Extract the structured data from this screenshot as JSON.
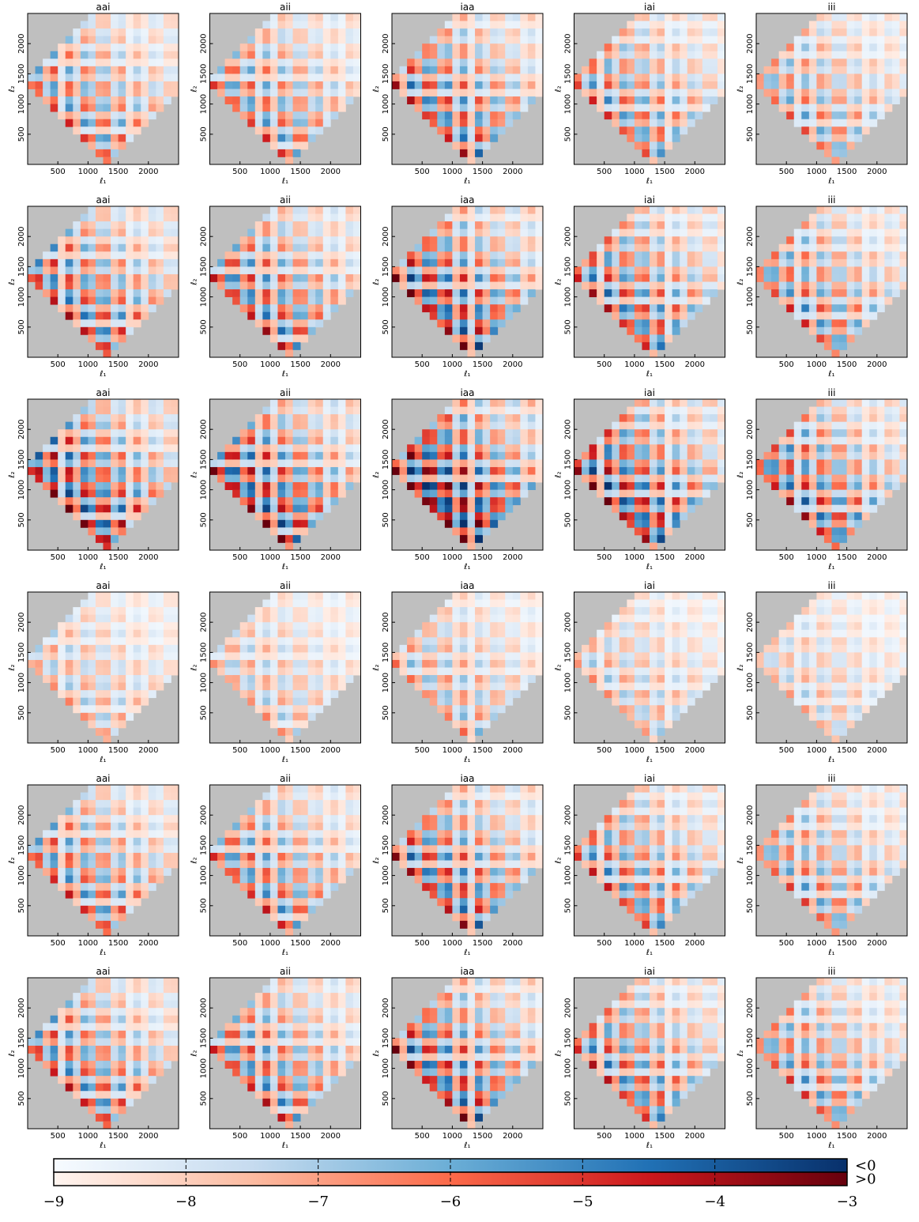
{
  "chart_data": [
    {
      "type": "heatmap",
      "title": "aai",
      "xlabel": "ℓ₁",
      "ylabel": "ℓ₂",
      "xlim": [
        0,
        2500
      ],
      "ylim": [
        0,
        2500
      ],
      "xticks": [
        500,
        1000,
        1500,
        2000
      ],
      "yticks": [
        500,
        1000,
        1500,
        2000
      ]
    },
    {
      "type": "heatmap",
      "title": "aii",
      "xlabel": "ℓ₁",
      "ylabel": "ℓ₂",
      "xlim": [
        0,
        2500
      ],
      "ylim": [
        0,
        2500
      ],
      "xticks": [
        500,
        1000,
        1500,
        2000
      ],
      "yticks": [
        500,
        1000,
        1500,
        2000
      ]
    },
    {
      "type": "heatmap",
      "title": "iaa",
      "xlabel": "ℓ₁",
      "ylabel": "ℓ₂",
      "xlim": [
        0,
        2500
      ],
      "ylim": [
        0,
        2500
      ],
      "xticks": [
        500,
        1000,
        1500,
        2000
      ],
      "yticks": [
        500,
        1000,
        1500,
        2000
      ]
    },
    {
      "type": "heatmap",
      "title": "iai",
      "xlabel": "ℓ₁",
      "ylabel": "ℓ₂",
      "xlim": [
        0,
        2500
      ],
      "ylim": [
        0,
        2500
      ],
      "xticks": [
        500,
        1000,
        1500,
        2000
      ],
      "yticks": [
        500,
        1000,
        1500,
        2000
      ]
    },
    {
      "type": "heatmap",
      "title": "iii",
      "xlabel": "ℓ₁",
      "ylabel": "ℓ₂",
      "xlim": [
        0,
        2500
      ],
      "ylim": [
        0,
        2500
      ],
      "xticks": [
        500,
        1000,
        1500,
        2000
      ],
      "yticks": [
        500,
        1000,
        1500,
        2000
      ]
    },
    {
      "type": "heatmap",
      "title": "aai",
      "xlabel": "ℓ₁",
      "ylabel": "ℓ₂",
      "xlim": [
        0,
        2500
      ],
      "ylim": [
        0,
        2500
      ],
      "xticks": [
        500,
        1000,
        1500,
        2000
      ],
      "yticks": [
        500,
        1000,
        1500,
        2000
      ]
    },
    {
      "type": "heatmap",
      "title": "aii",
      "xlabel": "ℓ₁",
      "ylabel": "ℓ₂",
      "xlim": [
        0,
        2500
      ],
      "ylim": [
        0,
        2500
      ],
      "xticks": [
        500,
        1000,
        1500,
        2000
      ],
      "yticks": [
        500,
        1000,
        1500,
        2000
      ]
    },
    {
      "type": "heatmap",
      "title": "iaa",
      "xlabel": "ℓ₁",
      "ylabel": "ℓ₂",
      "xlim": [
        0,
        2500
      ],
      "ylim": [
        0,
        2500
      ],
      "xticks": [
        500,
        1000,
        1500,
        2000
      ],
      "yticks": [
        500,
        1000,
        1500,
        2000
      ]
    },
    {
      "type": "heatmap",
      "title": "iai",
      "xlabel": "ℓ₁",
      "ylabel": "ℓ₂",
      "xlim": [
        0,
        2500
      ],
      "ylim": [
        0,
        2500
      ],
      "xticks": [
        500,
        1000,
        1500,
        2000
      ],
      "yticks": [
        500,
        1000,
        1500,
        2000
      ]
    },
    {
      "type": "heatmap",
      "title": "iii",
      "xlabel": "ℓ₁",
      "ylabel": "ℓ₂",
      "xlim": [
        0,
        2500
      ],
      "ylim": [
        0,
        2500
      ],
      "xticks": [
        500,
        1000,
        1500,
        2000
      ],
      "yticks": [
        500,
        1000,
        1500,
        2000
      ]
    },
    {
      "type": "heatmap",
      "title": "aai",
      "xlabel": "ℓ₁",
      "ylabel": "ℓ₂",
      "xlim": [
        0,
        2500
      ],
      "ylim": [
        0,
        2500
      ],
      "xticks": [
        500,
        1000,
        1500,
        2000
      ],
      "yticks": [
        500,
        1000,
        1500,
        2000
      ]
    },
    {
      "type": "heatmap",
      "title": "aii",
      "xlabel": "ℓ₁",
      "ylabel": "ℓ₂",
      "xlim": [
        0,
        2500
      ],
      "ylim": [
        0,
        2500
      ],
      "xticks": [
        500,
        1000,
        1500,
        2000
      ],
      "yticks": [
        500,
        1000,
        1500,
        2000
      ]
    },
    {
      "type": "heatmap",
      "title": "iaa",
      "xlabel": "ℓ₁",
      "ylabel": "ℓ₂",
      "xlim": [
        0,
        2500
      ],
      "ylim": [
        0,
        2500
      ],
      "xticks": [
        500,
        1000,
        1500,
        2000
      ],
      "yticks": [
        500,
        1000,
        1500,
        2000
      ]
    },
    {
      "type": "heatmap",
      "title": "iai",
      "xlabel": "ℓ₁",
      "ylabel": "ℓ₂",
      "xlim": [
        0,
        2500
      ],
      "ylim": [
        0,
        2500
      ],
      "xticks": [
        500,
        1000,
        1500,
        2000
      ],
      "yticks": [
        500,
        1000,
        1500,
        2000
      ]
    },
    {
      "type": "heatmap",
      "title": "iii",
      "xlabel": "ℓ₁",
      "ylabel": "ℓ₂",
      "xlim": [
        0,
        2500
      ],
      "ylim": [
        0,
        2500
      ],
      "xticks": [
        500,
        1000,
        1500,
        2000
      ],
      "yticks": [
        500,
        1000,
        1500,
        2000
      ]
    },
    {
      "type": "heatmap",
      "title": "aai",
      "xlabel": "ℓ₁",
      "ylabel": "ℓ₂",
      "xlim": [
        0,
        2500
      ],
      "ylim": [
        0,
        2500
      ],
      "xticks": [
        500,
        1000,
        1500,
        2000
      ],
      "yticks": [
        500,
        1000,
        1500,
        2000
      ]
    },
    {
      "type": "heatmap",
      "title": "aii",
      "xlabel": "ℓ₁",
      "ylabel": "ℓ₂",
      "xlim": [
        0,
        2500
      ],
      "ylim": [
        0,
        2500
      ],
      "xticks": [
        500,
        1000,
        1500,
        2000
      ],
      "yticks": [
        500,
        1000,
        1500,
        2000
      ]
    },
    {
      "type": "heatmap",
      "title": "iaa",
      "xlabel": "ℓ₁",
      "ylabel": "ℓ₂",
      "xlim": [
        0,
        2500
      ],
      "ylim": [
        0,
        2500
      ],
      "xticks": [
        500,
        1000,
        1500,
        2000
      ],
      "yticks": [
        500,
        1000,
        1500,
        2000
      ]
    },
    {
      "type": "heatmap",
      "title": "iai",
      "xlabel": "ℓ₁",
      "ylabel": "ℓ₂",
      "xlim": [
        0,
        2500
      ],
      "ylim": [
        0,
        2500
      ],
      "xticks": [
        500,
        1000,
        1500,
        2000
      ],
      "yticks": [
        500,
        1000,
        1500,
        2000
      ]
    },
    {
      "type": "heatmap",
      "title": "iii",
      "xlabel": "ℓ₁",
      "ylabel": "ℓ₂",
      "xlim": [
        0,
        2500
      ],
      "ylim": [
        0,
        2500
      ],
      "xticks": [
        500,
        1000,
        1500,
        2000
      ],
      "yticks": [
        500,
        1000,
        1500,
        2000
      ]
    },
    {
      "type": "heatmap",
      "title": "aai",
      "xlabel": "ℓ₁",
      "ylabel": "ℓ₂",
      "xlim": [
        0,
        2500
      ],
      "ylim": [
        0,
        2500
      ],
      "xticks": [
        500,
        1000,
        1500,
        2000
      ],
      "yticks": [
        500,
        1000,
        1500,
        2000
      ]
    },
    {
      "type": "heatmap",
      "title": "aii",
      "xlabel": "ℓ₁",
      "ylabel": "ℓ₂",
      "xlim": [
        0,
        2500
      ],
      "ylim": [
        0,
        2500
      ],
      "xticks": [
        500,
        1000,
        1500,
        2000
      ],
      "yticks": [
        500,
        1000,
        1500,
        2000
      ]
    },
    {
      "type": "heatmap",
      "title": "iaa",
      "xlabel": "ℓ₁",
      "ylabel": "ℓ₂",
      "xlim": [
        0,
        2500
      ],
      "ylim": [
        0,
        2500
      ],
      "xticks": [
        500,
        1000,
        1500,
        2000
      ],
      "yticks": [
        500,
        1000,
        1500,
        2000
      ]
    },
    {
      "type": "heatmap",
      "title": "iai",
      "xlabel": "ℓ₁",
      "ylabel": "ℓ₂",
      "xlim": [
        0,
        2500
      ],
      "ylim": [
        0,
        2500
      ],
      "xticks": [
        500,
        1000,
        1500,
        2000
      ],
      "yticks": [
        500,
        1000,
        1500,
        2000
      ]
    },
    {
      "type": "heatmap",
      "title": "iii",
      "xlabel": "ℓ₁",
      "ylabel": "ℓ₂",
      "xlim": [
        0,
        2500
      ],
      "ylim": [
        0,
        2500
      ],
      "xticks": [
        500,
        1000,
        1500,
        2000
      ],
      "yticks": [
        500,
        1000,
        1500,
        2000
      ]
    },
    {
      "type": "heatmap",
      "title": "aai",
      "xlabel": "ℓ₁",
      "ylabel": "ℓ₂",
      "xlim": [
        0,
        2500
      ],
      "ylim": [
        0,
        2500
      ],
      "xticks": [
        500,
        1000,
        1500,
        2000
      ],
      "yticks": [
        500,
        1000,
        1500,
        2000
      ]
    },
    {
      "type": "heatmap",
      "title": "aii",
      "xlabel": "ℓ₁",
      "ylabel": "ℓ₂",
      "xlim": [
        0,
        2500
      ],
      "ylim": [
        0,
        2500
      ],
      "xticks": [
        500,
        1000,
        1500,
        2000
      ],
      "yticks": [
        500,
        1000,
        1500,
        2000
      ]
    },
    {
      "type": "heatmap",
      "title": "iaa",
      "xlabel": "ℓ₁",
      "ylabel": "ℓ₂",
      "xlim": [
        0,
        2500
      ],
      "ylim": [
        0,
        2500
      ],
      "xticks": [
        500,
        1000,
        1500,
        2000
      ],
      "yticks": [
        500,
        1000,
        1500,
        2000
      ]
    },
    {
      "type": "heatmap",
      "title": "iai",
      "xlabel": "ℓ₁",
      "ylabel": "ℓ₂",
      "xlim": [
        0,
        2500
      ],
      "ylim": [
        0,
        2500
      ],
      "xticks": [
        500,
        1000,
        1500,
        2000
      ],
      "yticks": [
        500,
        1000,
        1500,
        2000
      ]
    },
    {
      "type": "heatmap",
      "title": "iii",
      "xlabel": "ℓ₁",
      "ylabel": "ℓ₂",
      "xlim": [
        0,
        2500
      ],
      "ylim": [
        0,
        2500
      ],
      "xticks": [
        500,
        1000,
        1500,
        2000
      ],
      "yticks": [
        500,
        1000,
        1500,
        2000
      ]
    },
    {
      "type": "colorbar",
      "xlim": [
        -9,
        -3
      ],
      "xticks": [
        {
          "value": -9,
          "label": "−9"
        },
        {
          "value": -8,
          "label": "−8"
        },
        {
          "value": -7,
          "label": "−7"
        },
        {
          "value": -6,
          "label": "−6"
        },
        {
          "value": -5,
          "label": "−5"
        },
        {
          "value": -4,
          "label": "−4"
        },
        {
          "value": -3,
          "label": "−3"
        }
      ],
      "series": [
        {
          "name": "<0",
          "color": "#08306b"
        },
        {
          "name": ">0",
          "color": "#67000d"
        }
      ]
    }
  ]
}
